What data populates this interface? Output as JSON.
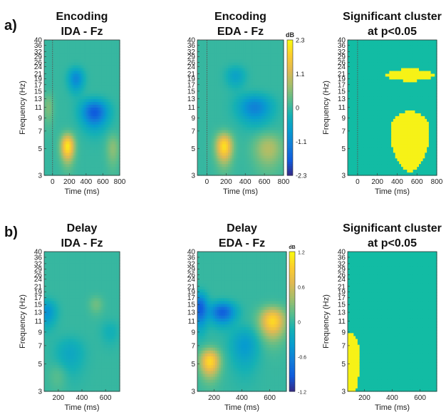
{
  "panels": [
    {
      "letter": "a)"
    },
    {
      "letter": "b)"
    }
  ],
  "chart_data": [
    {
      "type": "heatmap",
      "title": [
        "Encoding",
        "IDA - Fz"
      ],
      "xlabel": "Time (ms)",
      "ylabel": "Frequency (Hz)",
      "x_ticks": [
        "0",
        "200",
        "400",
        "600",
        "800"
      ],
      "y_ticks": [
        "3",
        "5",
        "7",
        "9",
        "11",
        "13",
        "15",
        "17",
        "19",
        "21",
        "24",
        "26",
        "29",
        "32",
        "36",
        "40"
      ],
      "x_range": [
        -100,
        800
      ],
      "marker_x": 0,
      "colormap": "parula",
      "blobs": [
        {
          "x": 180,
          "y": 5.2,
          "sx": 80,
          "sy": 1.3,
          "v": 2.1
        },
        {
          "x": 500,
          "y": 10,
          "sx": 150,
          "sy": 2.5,
          "v": -1.8
        },
        {
          "x": 280,
          "y": 19,
          "sx": 90,
          "sy": 4,
          "v": -1.1
        },
        {
          "x": -50,
          "y": 11,
          "sx": 60,
          "sy": 3,
          "v": 0.5
        },
        {
          "x": 720,
          "y": 5,
          "sx": 80,
          "sy": 1.5,
          "v": 0.6
        }
      ]
    },
    {
      "type": "heatmap",
      "title": [
        "Encoding",
        "EDA - Fz"
      ],
      "xlabel": "Time (ms)",
      "ylabel": "",
      "x_ticks": [
        "0",
        "200",
        "400",
        "600",
        "800"
      ],
      "y_ticks": [
        "3",
        "5",
        "7",
        "9",
        "11",
        "13",
        "15",
        "17",
        "19",
        "21",
        "24",
        "26",
        "29",
        "32",
        "36",
        "40"
      ],
      "x_range": [
        -100,
        800
      ],
      "marker_x": 0,
      "colormap": "parula",
      "colorbar": {
        "label": "dB",
        "ticks": [
          "2.3",
          "1.1",
          "0",
          "-1.1",
          "-2.3"
        ],
        "range": [
          -2.3,
          2.3
        ]
      },
      "blobs": [
        {
          "x": 180,
          "y": 5.2,
          "sx": 85,
          "sy": 1.4,
          "v": 2.0
        },
        {
          "x": 500,
          "y": 11,
          "sx": 170,
          "sy": 2.8,
          "v": -1.2
        },
        {
          "x": 640,
          "y": 5,
          "sx": 150,
          "sy": 1.6,
          "v": 0.9
        },
        {
          "x": 300,
          "y": 20,
          "sx": 100,
          "sy": 4,
          "v": -0.6
        }
      ]
    },
    {
      "type": "heatmap",
      "title": [
        "Significant cluster",
        "at p<0.05"
      ],
      "xlabel": "Time (ms)",
      "ylabel": "Frequency (Hz)",
      "x_ticks": [
        "0",
        "200",
        "400",
        "600",
        "800"
      ],
      "y_ticks": [
        "3",
        "5",
        "7",
        "9",
        "11",
        "13",
        "15",
        "17",
        "19",
        "21",
        "24",
        "26",
        "29",
        "32",
        "36",
        "40"
      ],
      "x_range": [
        -100,
        800
      ],
      "marker_x": 0,
      "mask": true,
      "colors": {
        "background": "#12bca4",
        "cluster": "#f6f217"
      },
      "regions": [
        {
          "x": 530,
          "y": 6.7,
          "sx": 240,
          "sy": 4.2
        },
        {
          "x": 530,
          "y": 20.5,
          "sx": 290,
          "sy": 2.8
        }
      ]
    },
    {
      "type": "heatmap",
      "title": [
        "Delay",
        "IDA - Fz"
      ],
      "xlabel": "Time (ms)",
      "ylabel": "Frequency (Hz)",
      "x_ticks": [
        "200",
        "400",
        "600"
      ],
      "y_ticks": [
        "3",
        "5",
        "7",
        "9",
        "11",
        "13",
        "15",
        "17",
        "19",
        "21",
        "24",
        "26",
        "29",
        "32",
        "36",
        "40"
      ],
      "x_range": [
        80,
        720
      ],
      "colormap": "parula",
      "blobs": [
        {
          "x": 100,
          "y": 13,
          "sx": 80,
          "sy": 3,
          "v": -0.9
        },
        {
          "x": 300,
          "y": 6,
          "sx": 120,
          "sy": 2,
          "v": -0.5
        },
        {
          "x": 520,
          "y": 15,
          "sx": 60,
          "sy": 2.5,
          "v": 0.4
        },
        {
          "x": 640,
          "y": 9,
          "sx": 80,
          "sy": 2,
          "v": -0.3
        },
        {
          "x": 200,
          "y": 4,
          "sx": 80,
          "sy": 1,
          "v": 0.3
        }
      ]
    },
    {
      "type": "heatmap",
      "title": [
        "Delay",
        "EDA - Fz"
      ],
      "xlabel": "Time (ms)",
      "ylabel": "",
      "x_ticks": [
        "200",
        "400",
        "600"
      ],
      "y_ticks": [
        "3",
        "5",
        "7",
        "9",
        "11",
        "13",
        "15",
        "17",
        "19",
        "21",
        "24",
        "26",
        "29",
        "32",
        "36",
        "40"
      ],
      "x_range": [
        80,
        720
      ],
      "colormap": "parula",
      "colorbar": {
        "label": "dB",
        "ticks": [
          "1.2",
          "0.6",
          "0",
          "-0.6",
          "-1.2"
        ],
        "range": [
          -1.2,
          1.2
        ]
      },
      "blobs": [
        {
          "x": 170,
          "y": 5.2,
          "sx": 70,
          "sy": 1.3,
          "v": 1.0
        },
        {
          "x": 620,
          "y": 11,
          "sx": 90,
          "sy": 3,
          "v": 1.0
        },
        {
          "x": 260,
          "y": 13,
          "sx": 90,
          "sy": 2.5,
          "v": -0.9
        },
        {
          "x": 100,
          "y": 14,
          "sx": 50,
          "sy": 4,
          "v": -0.9
        },
        {
          "x": 420,
          "y": 7,
          "sx": 100,
          "sy": 2.5,
          "v": -0.4
        }
      ]
    },
    {
      "type": "heatmap",
      "title": [
        "Significant cluster",
        "at p<0.05"
      ],
      "xlabel": "Time (ms)",
      "ylabel": "Frequency (Hz)",
      "x_ticks": [
        "200",
        "400",
        "600"
      ],
      "y_ticks": [
        "3",
        "5",
        "7",
        "9",
        "11",
        "13",
        "15",
        "17",
        "19",
        "21",
        "24",
        "26",
        "29",
        "32",
        "36",
        "40"
      ],
      "x_range": [
        80,
        720
      ],
      "mask": true,
      "colors": {
        "background": "#12bca4",
        "cluster": "#f6f217"
      },
      "regions": [
        {
          "x": 80,
          "y": 5.5,
          "sx": 105,
          "sy": 4.2
        }
      ]
    }
  ]
}
